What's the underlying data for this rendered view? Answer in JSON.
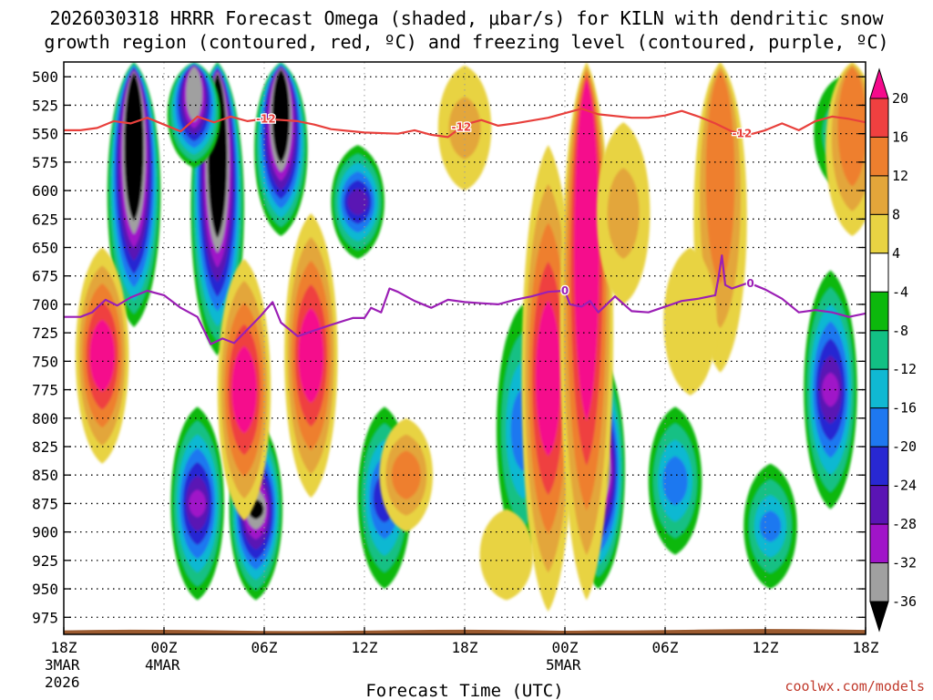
{
  "chart_data": {
    "type": "heatmap",
    "title_line1": "2026030318 HRRR Forecast Omega (shaded, μbar/s) for KILN with dendritic snow",
    "title_line2": "growth region (contoured, red, ºC) and freezing level (contoured, purple, ºC)",
    "xlabel": "Forecast Time (UTC)",
    "credit": "coolwx.com/models",
    "y_ticks": [
      500,
      525,
      550,
      575,
      600,
      625,
      650,
      675,
      700,
      725,
      750,
      775,
      800,
      825,
      850,
      875,
      900,
      925,
      950,
      975
    ],
    "ylim_hpa": [
      487,
      990
    ],
    "forecast_hours": [
      0,
      48
    ],
    "x_ticks": [
      {
        "hour": 0,
        "label": "18Z",
        "sub1": "3MAR",
        "sub2": "2026"
      },
      {
        "hour": 6,
        "label": "00Z",
        "sub1": "4MAR",
        "sub2": ""
      },
      {
        "hour": 12,
        "label": "06Z",
        "sub1": "",
        "sub2": ""
      },
      {
        "hour": 18,
        "label": "12Z",
        "sub1": "",
        "sub2": ""
      },
      {
        "hour": 24,
        "label": "18Z",
        "sub1": "",
        "sub2": ""
      },
      {
        "hour": 30,
        "label": "00Z",
        "sub1": "5MAR",
        "sub2": ""
      },
      {
        "hour": 36,
        "label": "06Z",
        "sub1": "",
        "sub2": ""
      },
      {
        "hour": 42,
        "label": "12Z",
        "sub1": "",
        "sub2": ""
      },
      {
        "hour": 48,
        "label": "18Z",
        "sub1": "",
        "sub2": ""
      }
    ],
    "colorbar": {
      "labels": [
        "20",
        "16",
        "12",
        "8",
        "4",
        "-4",
        "-8",
        "-12",
        "-16",
        "-20",
        "-24",
        "-28",
        "-32",
        "-36"
      ],
      "colors": [
        "#f50a8c",
        "#ef4040",
        "#ee7f2e",
        "#e3a63a",
        "#e8d343",
        "#ffffff",
        "#0cb80c",
        "#12c084",
        "#10b8d2",
        "#1e78f0",
        "#2828d2",
        "#5a14b4",
        "#a014c8",
        "#a0a0a0",
        "#000000"
      ]
    },
    "dgz_contour": {
      "label": "-12",
      "color": "#e8403c",
      "points": [
        [
          0,
          547
        ],
        [
          1,
          547
        ],
        [
          2,
          545
        ],
        [
          3,
          539
        ],
        [
          4,
          541
        ],
        [
          5,
          536
        ],
        [
          6,
          542
        ],
        [
          7,
          548
        ],
        [
          8,
          535
        ],
        [
          9,
          540
        ],
        [
          10,
          535
        ],
        [
          11,
          539
        ],
        [
          12,
          537
        ],
        [
          14,
          539
        ],
        [
          15,
          542
        ],
        [
          16,
          546
        ],
        [
          18,
          549
        ],
        [
          20,
          550
        ],
        [
          21,
          547
        ],
        [
          22,
          551
        ],
        [
          23,
          553
        ],
        [
          24,
          542
        ],
        [
          25,
          538
        ],
        [
          26,
          543
        ],
        [
          27,
          541
        ],
        [
          29,
          536
        ],
        [
          30,
          532
        ],
        [
          31,
          528
        ],
        [
          32,
          533
        ],
        [
          34,
          536
        ],
        [
          35,
          536
        ],
        [
          36,
          534
        ],
        [
          37,
          530
        ],
        [
          38,
          535
        ],
        [
          39,
          541
        ],
        [
          40,
          548
        ],
        [
          41,
          551
        ],
        [
          42,
          547
        ],
        [
          43,
          541
        ],
        [
          44,
          547
        ],
        [
          45,
          539
        ],
        [
          46,
          535
        ],
        [
          47,
          537
        ],
        [
          48,
          540
        ]
      ]
    },
    "freezing_contour": {
      "label": "0",
      "color": "#9b1fb5",
      "points": [
        [
          0,
          711
        ],
        [
          1,
          711
        ],
        [
          1.7,
          707
        ],
        [
          2.5,
          696
        ],
        [
          3.2,
          701
        ],
        [
          4,
          694
        ],
        [
          5,
          688
        ],
        [
          6,
          692
        ],
        [
          7,
          703
        ],
        [
          8,
          711
        ],
        [
          8.8,
          735
        ],
        [
          9.5,
          730
        ],
        [
          10.2,
          734
        ],
        [
          11,
          722
        ],
        [
          11.8,
          710
        ],
        [
          12.5,
          698
        ],
        [
          13,
          716
        ],
        [
          14,
          728
        ],
        [
          15,
          723
        ],
        [
          16,
          718
        ],
        [
          17.3,
          712
        ],
        [
          18,
          712
        ],
        [
          18.4,
          703
        ],
        [
          19,
          707
        ],
        [
          19.5,
          686
        ],
        [
          20,
          689
        ],
        [
          21,
          697
        ],
        [
          22,
          703
        ],
        [
          23,
          696
        ],
        [
          24,
          698
        ],
        [
          25,
          699
        ],
        [
          26,
          700
        ],
        [
          27,
          696
        ],
        [
          28,
          693
        ],
        [
          29,
          689
        ],
        [
          30,
          688
        ],
        [
          30.3,
          700
        ],
        [
          31,
          702
        ],
        [
          31.5,
          697
        ],
        [
          32,
          707
        ],
        [
          33,
          693
        ],
        [
          34,
          706
        ],
        [
          35,
          707
        ],
        [
          36,
          702
        ],
        [
          37,
          697
        ],
        [
          38,
          695
        ],
        [
          39,
          692
        ],
        [
          39.2,
          676
        ],
        [
          39.4,
          657
        ],
        [
          39.6,
          683
        ],
        [
          40,
          686
        ],
        [
          41,
          681
        ],
        [
          42,
          687
        ],
        [
          43,
          695
        ],
        [
          44,
          707
        ],
        [
          45,
          705
        ],
        [
          46,
          707
        ],
        [
          47,
          711
        ],
        [
          48,
          708
        ]
      ]
    },
    "omega_features": [
      {
        "sign": "neg",
        "hour": 4.2,
        "p_top": 487,
        "p_bot": 720,
        "mag": 40
      },
      {
        "sign": "neg",
        "hour": 9.2,
        "p_top": 487,
        "p_bot": 745,
        "mag": 40
      },
      {
        "sign": "neg",
        "hour": 13.0,
        "p_top": 487,
        "p_bot": 640,
        "mag": 38
      },
      {
        "sign": "neg",
        "hour": 7.8,
        "p_top": 487,
        "p_bot": 580,
        "mag": 32
      },
      {
        "sign": "neg",
        "hour": 11.5,
        "p_top": 800,
        "p_bot": 960,
        "mag": 36
      },
      {
        "sign": "neg",
        "hour": 8.0,
        "p_top": 790,
        "p_bot": 960,
        "mag": 28
      },
      {
        "sign": "neg",
        "hour": 17.6,
        "p_top": 560,
        "p_bot": 660,
        "mag": 26
      },
      {
        "sign": "neg",
        "hour": 32.0,
        "p_top": 740,
        "p_bot": 950,
        "mag": 40
      },
      {
        "sign": "neg",
        "hour": 45.9,
        "p_top": 670,
        "p_bot": 880,
        "mag": 28
      },
      {
        "sign": "neg",
        "hour": 19.2,
        "p_top": 790,
        "p_bot": 950,
        "mag": 22
      },
      {
        "sign": "neg",
        "hour": 27.5,
        "p_top": 700,
        "p_bot": 920,
        "mag": 18
      },
      {
        "sign": "neg",
        "hour": 36.6,
        "p_top": 790,
        "p_bot": 920,
        "mag": 18
      },
      {
        "sign": "neg",
        "hour": 42.3,
        "p_top": 840,
        "p_bot": 950,
        "mag": 16
      },
      {
        "sign": "neg",
        "hour": 46.5,
        "p_top": 500,
        "p_bot": 600,
        "mag": 10
      },
      {
        "sign": "pos",
        "hour": 2.3,
        "p_top": 650,
        "p_bot": 840,
        "mag": 24
      },
      {
        "sign": "pos",
        "hour": 10.8,
        "p_top": 660,
        "p_bot": 890,
        "mag": 24
      },
      {
        "sign": "pos",
        "hour": 14.8,
        "p_top": 620,
        "p_bot": 870,
        "mag": 24
      },
      {
        "sign": "pos",
        "hour": 29.0,
        "p_top": 560,
        "p_bot": 970,
        "mag": 24
      },
      {
        "sign": "pos",
        "hour": 31.3,
        "p_top": 487,
        "p_bot": 960,
        "mag": 24
      },
      {
        "sign": "pos",
        "hour": 20.5,
        "p_top": 800,
        "p_bot": 900,
        "mag": 14
      },
      {
        "sign": "pos",
        "hour": 39.3,
        "p_top": 487,
        "p_bot": 760,
        "mag": 14
      },
      {
        "sign": "pos",
        "hour": 47.2,
        "p_top": 487,
        "p_bot": 640,
        "mag": 14
      },
      {
        "sign": "pos",
        "hour": 24.0,
        "p_top": 490,
        "p_bot": 600,
        "mag": 8
      },
      {
        "sign": "pos",
        "hour": 33.5,
        "p_top": 540,
        "p_bot": 700,
        "mag": 8
      },
      {
        "sign": "pos",
        "hour": 37.5,
        "p_top": 650,
        "p_bot": 780,
        "mag": 6
      },
      {
        "sign": "pos",
        "hour": 26.5,
        "p_top": 880,
        "p_bot": 960,
        "mag": 6
      }
    ]
  }
}
